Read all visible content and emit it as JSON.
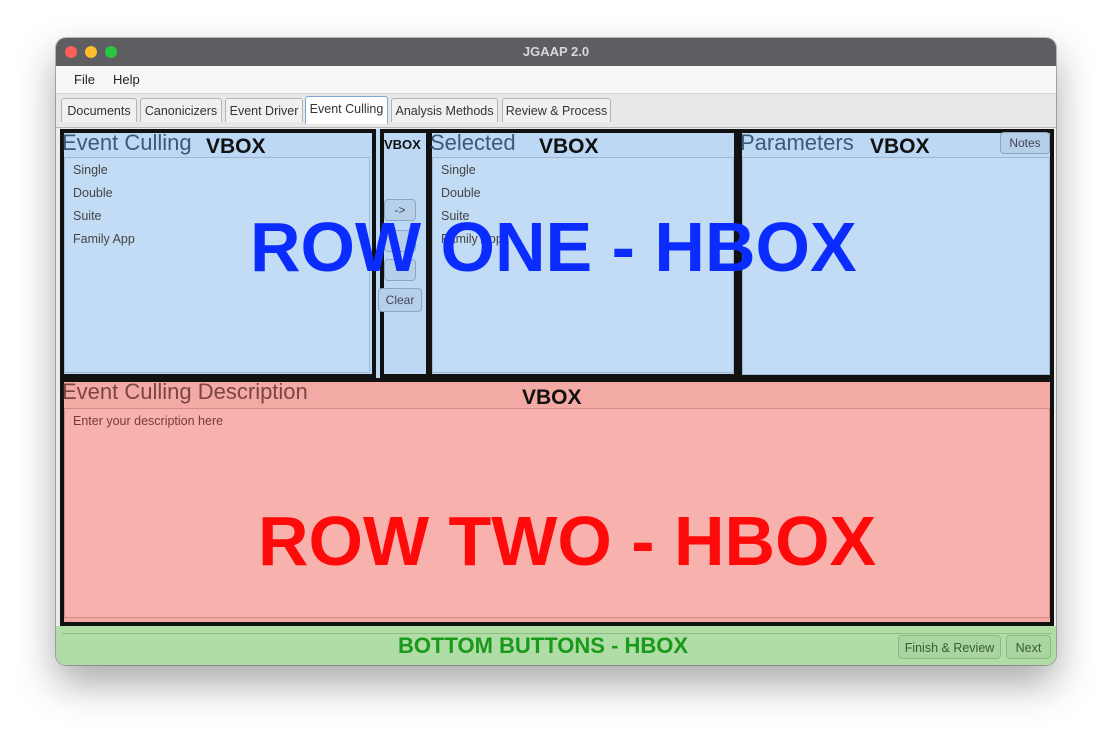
{
  "window": {
    "title": "JGAAP 2.0"
  },
  "menu": [
    "File",
    "Help"
  ],
  "tabs": [
    {
      "label": "Documents"
    },
    {
      "label": "Canonicizers"
    },
    {
      "label": "Event Driver"
    },
    {
      "label": "Event Culling",
      "active": true
    },
    {
      "label": "Analysis Methods"
    },
    {
      "label": "Review & Process"
    }
  ],
  "row_one": {
    "overlay_label": "ROW ONE - HBOX",
    "overlay_color": "#0a2cff",
    "event_culling": {
      "title": "Event Culling",
      "vbox_label": "VBOX",
      "items": [
        "Single",
        "Double",
        "Suite",
        "Family App"
      ]
    },
    "buttons_column": {
      "vbox_label": "VBOX",
      "add_label": "->",
      "clear_label": "Clear"
    },
    "selected": {
      "title": "Selected",
      "vbox_label": "VBOX",
      "items": [
        "Single",
        "Double",
        "Suite",
        "Family App"
      ]
    },
    "parameters": {
      "title": "Parameters",
      "vbox_label": "VBOX",
      "notes_label": "Notes"
    }
  },
  "row_two": {
    "overlay_label": "ROW TWO - HBOX",
    "overlay_color": "#ff0a0a",
    "title": "Event Culling Description",
    "vbox_label": "VBOX",
    "placeholder": "Enter your description here"
  },
  "bottom": {
    "overlay_label": "BOTTOM BUTTONS - HBOX",
    "overlay_color": "#1a9a1a",
    "finish_label": "Finish & Review",
    "next_label": "Next"
  }
}
